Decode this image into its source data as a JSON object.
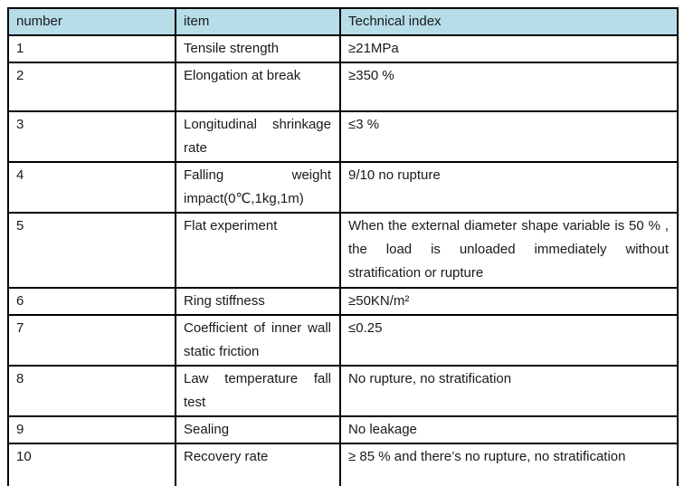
{
  "colors": {
    "header_bg": "#B7DDE8",
    "border": "#000000",
    "text": "#1a1a1a"
  },
  "table": {
    "headers": {
      "number": "number",
      "item": "item",
      "index": "Technical index"
    },
    "rows": [
      {
        "number": "1",
        "item": "Tensile strength",
        "index": "≥21MPa"
      },
      {
        "number": "2",
        "item": "Elongation at break",
        "index": "≥350 %"
      },
      {
        "number": "3",
        "item": "Longitudinal shrinkage rate",
        "index": "≤3 %"
      },
      {
        "number": "4",
        "item": "Falling weight impact(0℃,1kg,1m)",
        "index": "9/10 no rupture"
      },
      {
        "number": "5",
        "item": "Flat experiment",
        "index": "When the external diameter shape variable is 50 % , the load is unloaded immediately without stratification or rupture"
      },
      {
        "number": "6",
        "item": "Ring stiffness",
        "index": "≥50KN/m²"
      },
      {
        "number": "7",
        "item": "Coefficient of inner wall static friction",
        "index": "≤0.25"
      },
      {
        "number": "8",
        "item": "Law temperature fall test",
        "index": "No rupture, no stratification"
      },
      {
        "number": "9",
        "item": "Sealing",
        "index": "No leakage"
      },
      {
        "number": "10",
        "item": "Recovery rate",
        "index": "≥ 85 %  and there’s no rupture, no stratification"
      }
    ]
  }
}
